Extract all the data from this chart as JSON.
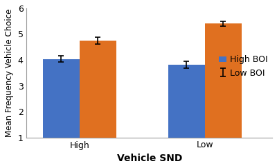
{
  "groups": [
    "High",
    "Low"
  ],
  "series": [
    "High BOI",
    "Low BOI"
  ],
  "values": [
    [
      4.03,
      4.75
    ],
    [
      3.82,
      5.4
    ]
  ],
  "errors": [
    [
      0.12,
      0.13
    ],
    [
      0.13,
      0.1
    ]
  ],
  "bar_colors": [
    "#4472C4",
    "#E07020"
  ],
  "xlabel": "Vehicle SND",
  "ylabel": "Mean Frequency Vehicle Choice",
  "ylim": [
    1,
    6
  ],
  "yticks": [
    1,
    2,
    3,
    4,
    5,
    6
  ],
  "legend_labels": [
    "High BOI",
    "Low BOI"
  ],
  "bar_width": 0.38,
  "group_positions": [
    1.0,
    2.3
  ],
  "background_color": "#FFFFFF",
  "xlabel_fontsize": 10,
  "ylabel_fontsize": 8.5,
  "tick_fontsize": 9,
  "legend_fontsize": 9,
  "capsize": 3,
  "error_linewidth": 1.2,
  "error_capthickness": 1.2
}
